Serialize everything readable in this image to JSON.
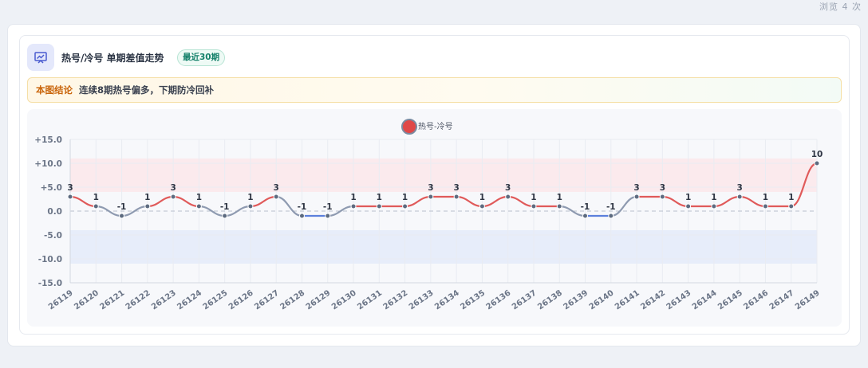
{
  "header": {
    "view_count": "浏览 4 次"
  },
  "panel": {
    "title": "热号/冷号 单期差值走势",
    "badge": "最近30期",
    "icon": "trend-chart-icon",
    "conclusion_tag": "本图结论",
    "conclusion_text": "连续8期热号偏多，下期防冷回补"
  },
  "colors": {
    "hot": "#e05a5a",
    "cold": "#5b7fdc",
    "neutral": "#8e9ab0",
    "point": "#5d6b80"
  },
  "chart_data": {
    "type": "line",
    "title": "",
    "xlabel": "",
    "ylabel": "",
    "legend": "top-center",
    "grid": true,
    "ylim": [
      -15,
      15
    ],
    "yticks": [
      15,
      10,
      5,
      0,
      -5,
      -10,
      -15
    ],
    "ytick_labels": [
      "+15.0",
      "+10.0",
      "+5.0",
      "0.0",
      "-5.0",
      "-10.0",
      "-15.0"
    ],
    "hot_band": [
      4,
      11
    ],
    "cold_band": [
      -11,
      -4
    ],
    "categories": [
      "26119",
      "26120",
      "26121",
      "26122",
      "26123",
      "26124",
      "26125",
      "26126",
      "26127",
      "26128",
      "26129",
      "26130",
      "26131",
      "26132",
      "26133",
      "26134",
      "26135",
      "26136",
      "26137",
      "26138",
      "26139",
      "26140",
      "26141",
      "26142",
      "26143",
      "26144",
      "26145",
      "26146",
      "26147",
      "26149"
    ],
    "series": [
      {
        "name": "热号-冷号",
        "values": [
          3,
          1,
          -1,
          1,
          3,
          1,
          -1,
          1,
          3,
          -1,
          -1,
          1,
          1,
          1,
          3,
          3,
          1,
          3,
          1,
          1,
          -1,
          -1,
          3,
          3,
          1,
          1,
          3,
          1,
          1,
          10
        ],
        "value_labels": [
          "3",
          "1",
          "-1",
          "1",
          "3",
          "1",
          "-1",
          "1",
          "3",
          "-1",
          "-1",
          "1",
          "1",
          "1",
          "3",
          "3",
          "1",
          "3",
          "1",
          "1",
          "-1",
          "-1",
          "3",
          "3",
          "1",
          "1",
          "3",
          "1",
          "1",
          "10"
        ]
      }
    ]
  }
}
